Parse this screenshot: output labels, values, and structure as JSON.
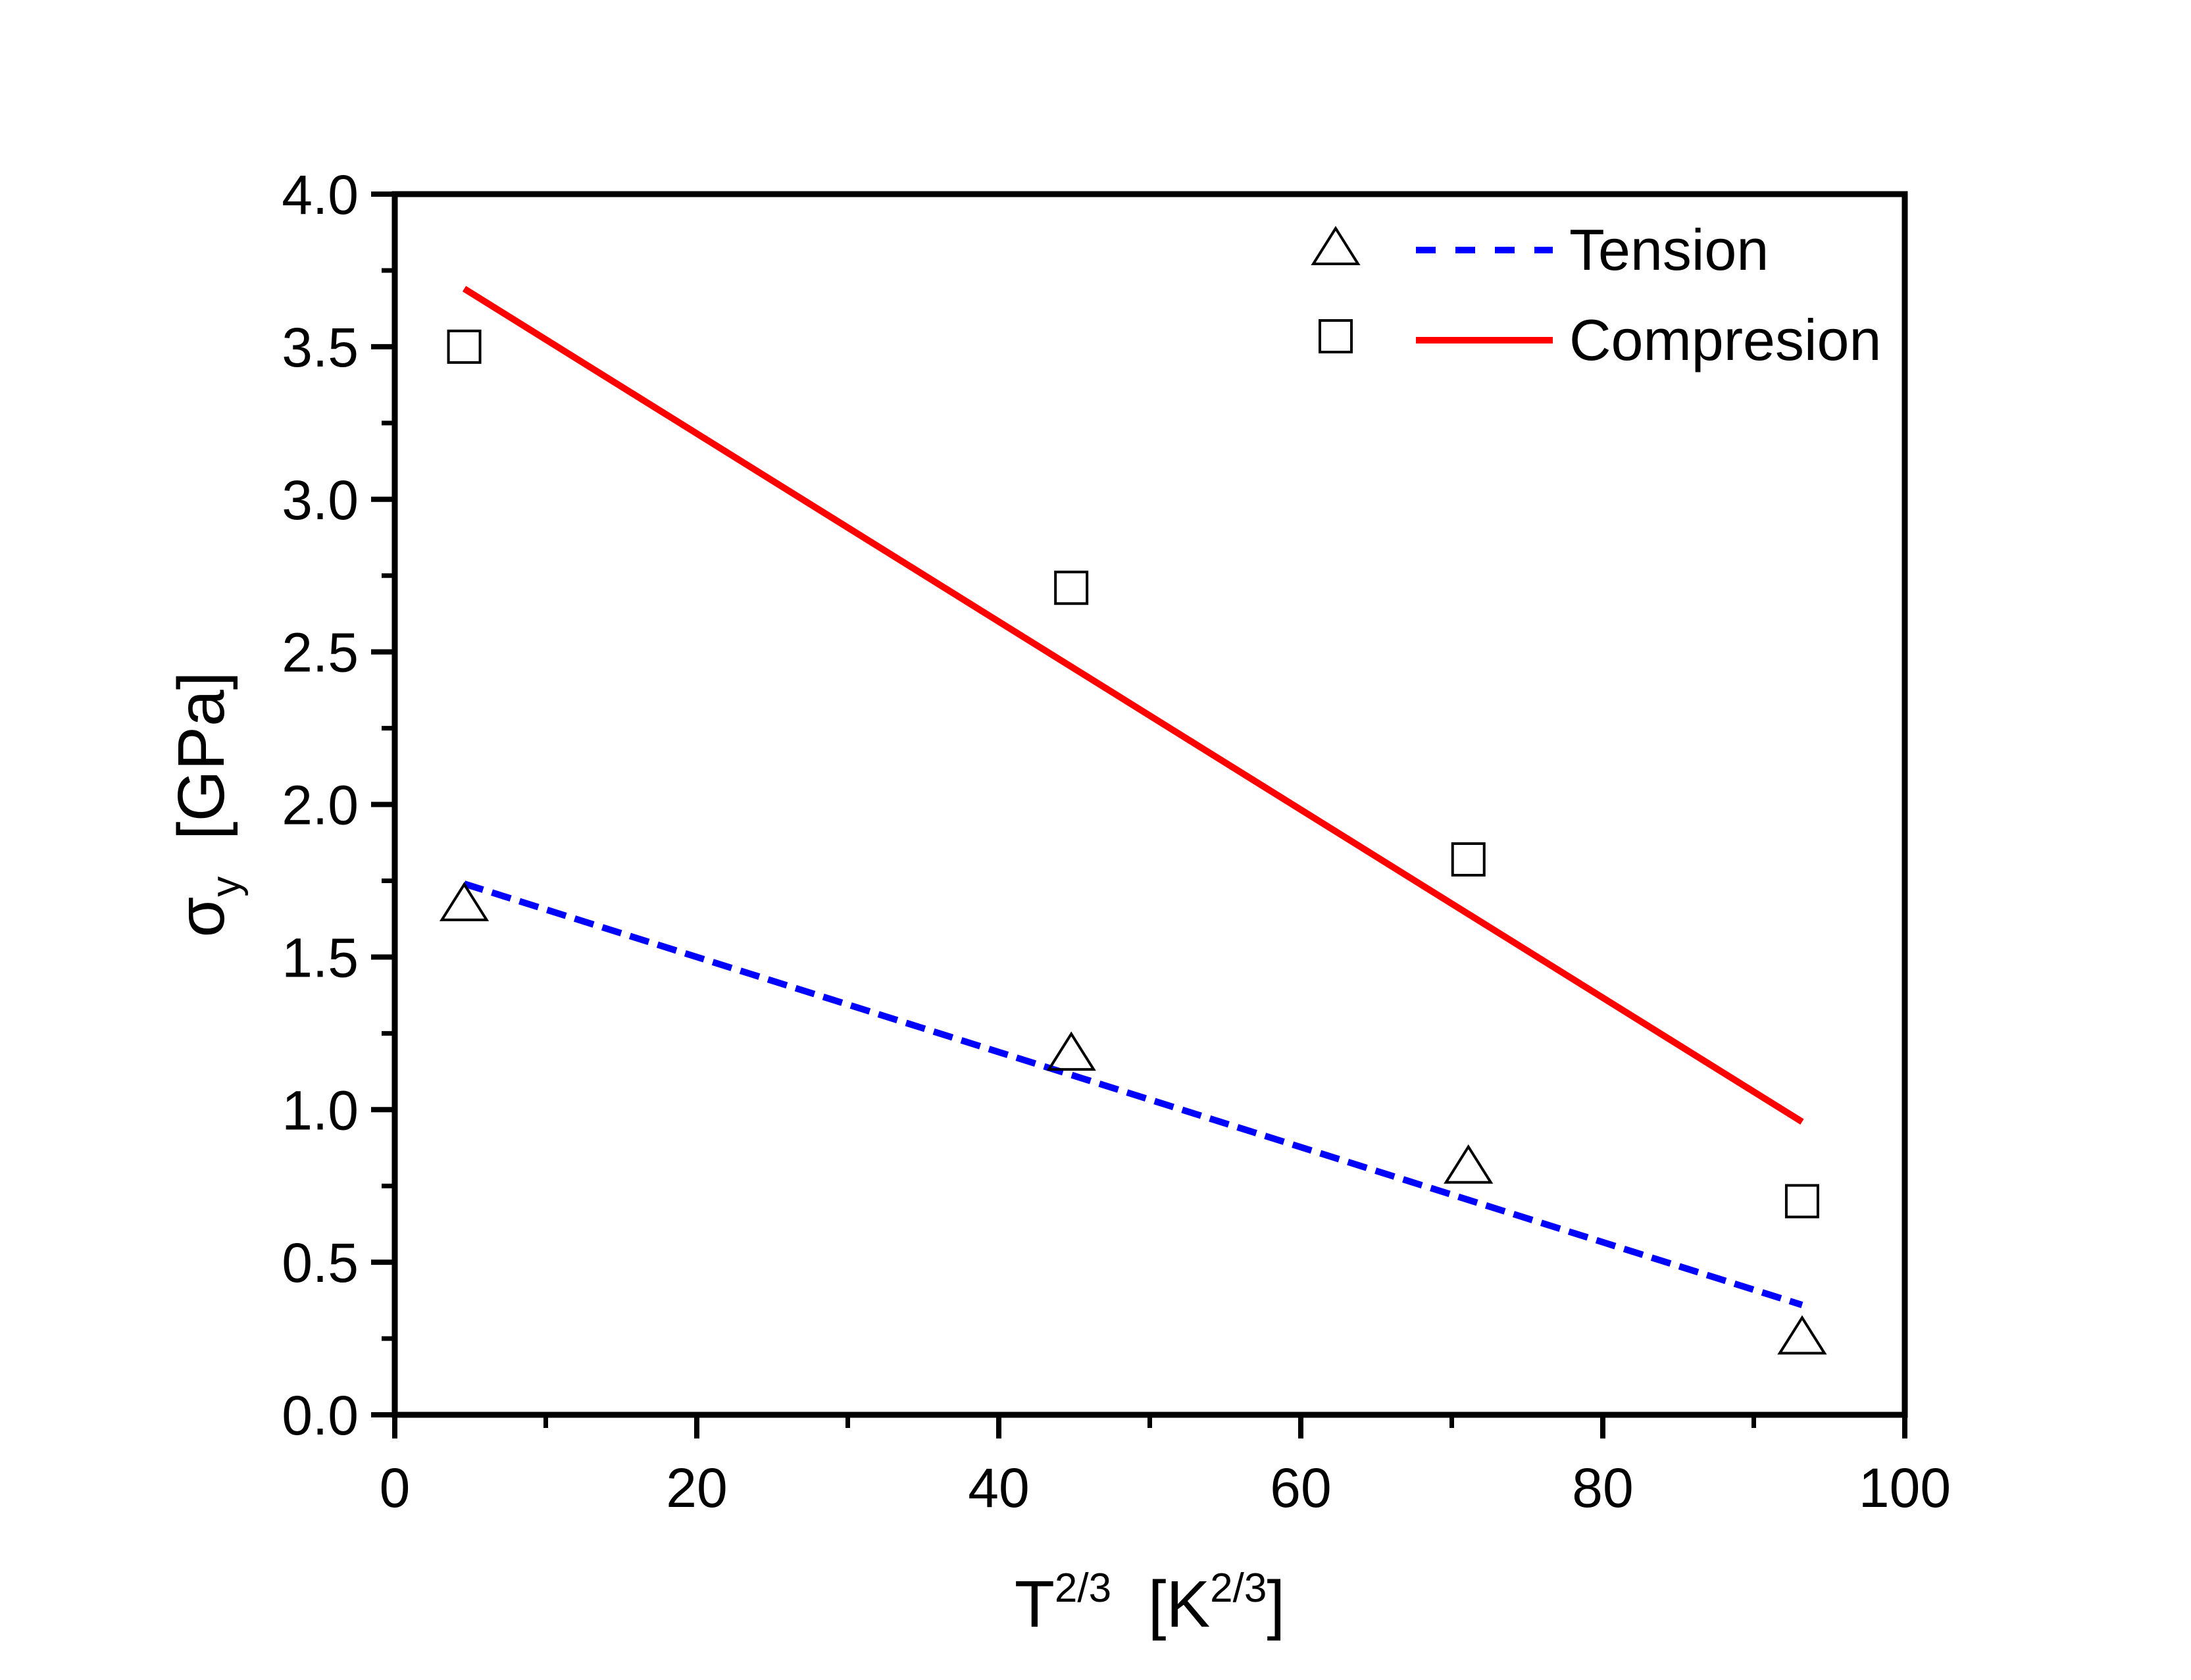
{
  "chart_data": {
    "type": "scatter",
    "xlabel": {
      "main": "T",
      "sup": "2/3",
      "unit_open": "[K",
      "unit_sup": "2/3",
      "unit_close": "]"
    },
    "ylabel": {
      "main": "σ",
      "sub": "y",
      "unit": "[GPa]"
    },
    "xlim": [
      0,
      100
    ],
    "ylim": [
      0,
      4.0
    ],
    "xticks": [
      "0",
      "20",
      "40",
      "60",
      "80",
      "100"
    ],
    "yticks": [
      "0.0",
      "0.5",
      "1.0",
      "1.5",
      "2.0",
      "2.5",
      "3.0",
      "3.5",
      "4.0"
    ],
    "grid": false,
    "legend_position": "top-right",
    "series": [
      {
        "name": "Tension",
        "marker": "triangle",
        "points": [
          [
            4.6,
            1.68
          ],
          [
            44.8,
            1.19
          ],
          [
            71.1,
            0.82
          ],
          [
            93.2,
            0.26
          ]
        ],
        "fit": {
          "x": [
            4.6,
            93.2
          ],
          "y": [
            1.74,
            0.36
          ]
        },
        "fit_color": "#0000ff",
        "fit_style": "dashed"
      },
      {
        "name": "Compresion",
        "marker": "square",
        "points": [
          [
            4.6,
            3.5
          ],
          [
            44.8,
            2.71
          ],
          [
            71.1,
            1.82
          ],
          [
            93.2,
            0.7
          ]
        ],
        "fit": {
          "x": [
            4.6,
            93.2
          ],
          "y": [
            3.69,
            0.96
          ]
        },
        "fit_color": "#ff0000",
        "fit_style": "solid"
      }
    ]
  }
}
